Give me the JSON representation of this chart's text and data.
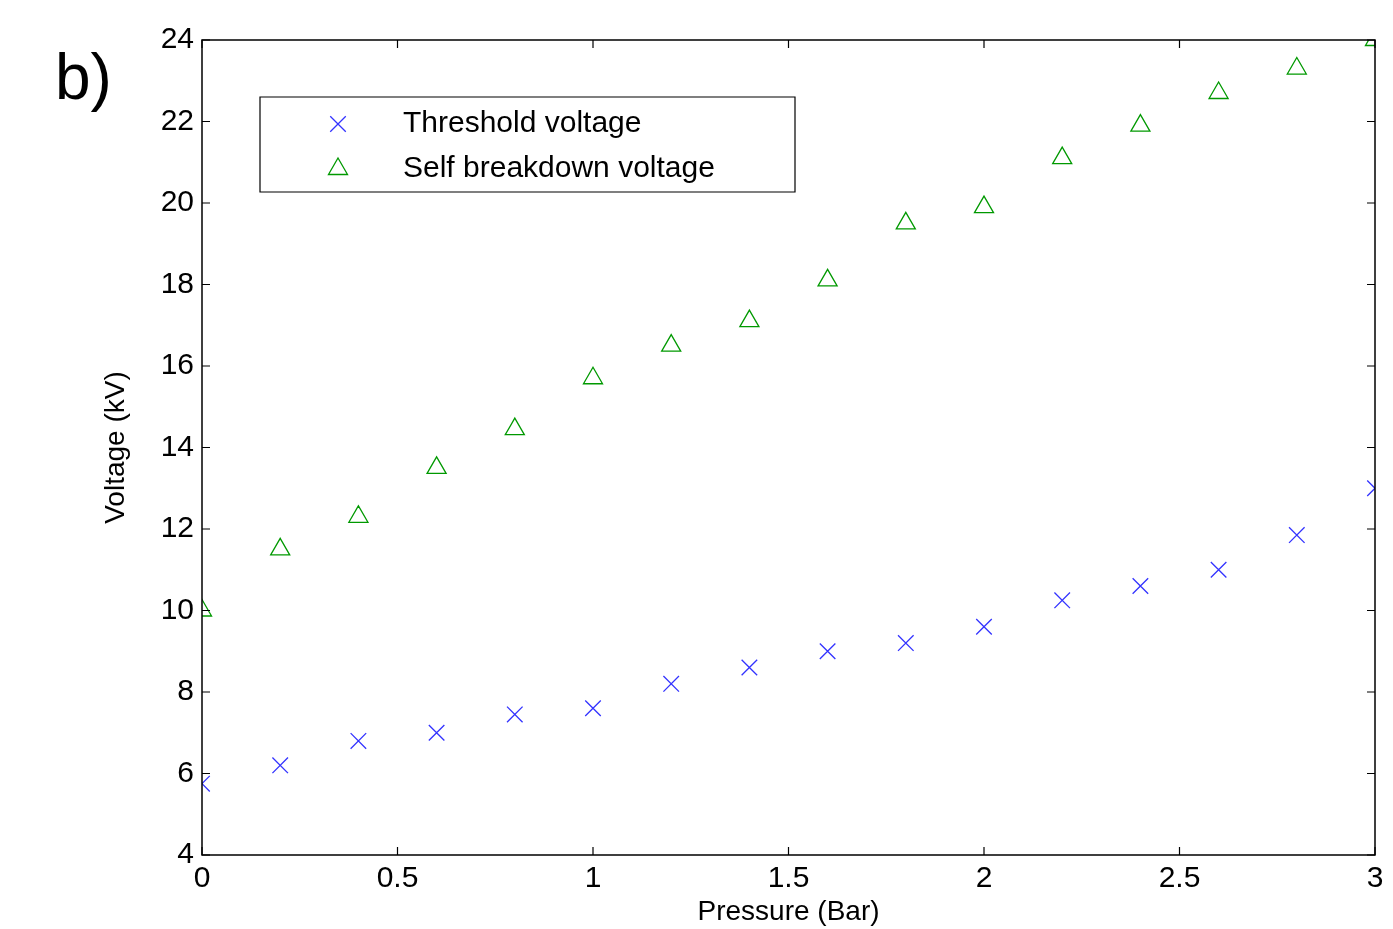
{
  "chart_data": {
    "type": "scatter",
    "xlabel": "Pressure (Bar)",
    "ylabel": "Voltage (kV)",
    "annotations": [
      "b)"
    ],
    "x": [
      0,
      0.2,
      0.4,
      0.6,
      0.8,
      1,
      1.2,
      1.4,
      1.6,
      1.8,
      2,
      2.2,
      2.4,
      2.6,
      2.8,
      3
    ],
    "series": [
      {
        "name": "Threshold voltage",
        "color": "#3333ff",
        "marker": "cross",
        "values": [
          5.75,
          6.2,
          6.8,
          7.0,
          7.45,
          7.6,
          8.2,
          8.6,
          9.0,
          9.2,
          9.6,
          10.25,
          10.6,
          11.0,
          11.85,
          13.0
        ]
      },
      {
        "name": "Self breakdown voltage",
        "color": "#009900",
        "marker": "triangle",
        "values": [
          10.0,
          11.5,
          12.3,
          13.5,
          14.45,
          15.7,
          16.5,
          17.1,
          18.1,
          19.5,
          19.9,
          21.1,
          21.9,
          22.7,
          23.3,
          24.0
        ]
      }
    ],
    "xlim": [
      0,
      3
    ],
    "xticks": [
      0,
      0.5,
      1,
      1.5,
      2,
      2.5,
      3
    ],
    "ylim": [
      4,
      24
    ],
    "yticks": [
      4,
      6,
      8,
      10,
      12,
      14,
      16,
      18,
      20,
      22,
      24
    ],
    "legend": "top left",
    "grid": false
  }
}
